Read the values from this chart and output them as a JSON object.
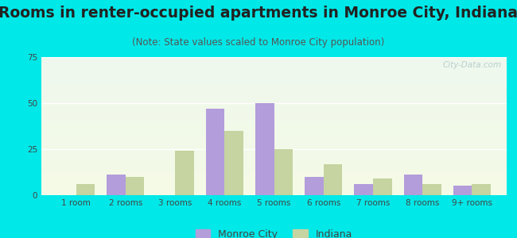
{
  "title": "Rooms in renter-occupied apartments in Monroe City, Indiana",
  "subtitle": "(Note: State values scaled to Monroe City population)",
  "categories": [
    "1 room",
    "2 rooms",
    "3 rooms",
    "4 rooms",
    "5 rooms",
    "6 rooms",
    "7 rooms",
    "8 rooms",
    "9+ rooms"
  ],
  "monroe_city": [
    0,
    11,
    0,
    47,
    50,
    10,
    6,
    11,
    5
  ],
  "indiana": [
    6,
    10,
    24,
    35,
    25,
    17,
    9,
    6,
    6
  ],
  "monroe_color": "#b39ddb",
  "indiana_color": "#c5d4a0",
  "background_outer": "#00e8e8",
  "ylim": [
    0,
    75
  ],
  "yticks": [
    0,
    25,
    50,
    75
  ],
  "bar_width": 0.38,
  "legend_monroe": "Monroe City",
  "legend_indiana": "Indiana",
  "title_fontsize": 13.5,
  "subtitle_fontsize": 8.5,
  "tick_fontsize": 7.5,
  "legend_fontsize": 9,
  "watermark_text": "City-Data.com"
}
